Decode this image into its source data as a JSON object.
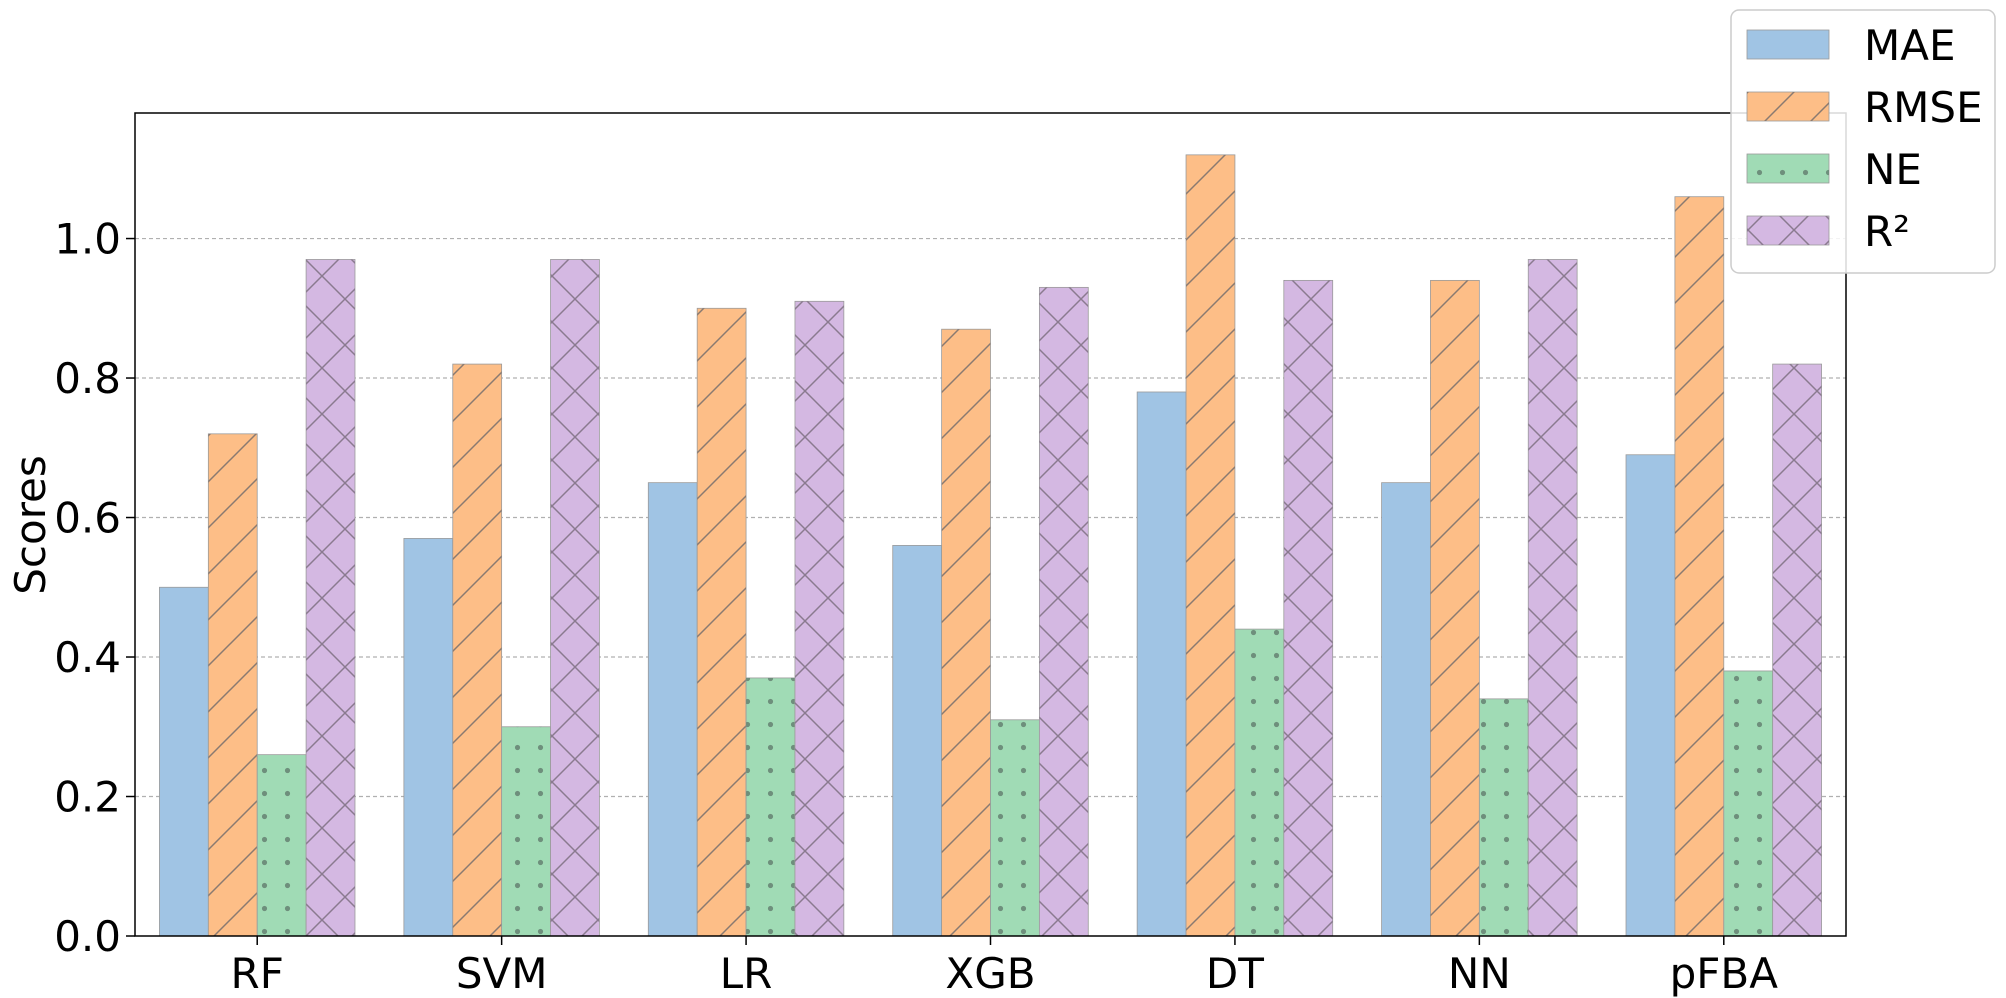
{
  "chart_data": {
    "type": "bar",
    "title": "",
    "xlabel": "",
    "ylabel": "Scores",
    "ylim": [
      0,
      1.18
    ],
    "yticks": [
      "0.0",
      "0.2",
      "0.4",
      "0.6",
      "0.8",
      "1.0"
    ],
    "grid": "y-dashed",
    "legend_position": "top-right",
    "categories": [
      "RF",
      "SVM",
      "LR",
      "XGB",
      "DT",
      "NN",
      "pFBA"
    ],
    "series": [
      {
        "name": "MAE",
        "color": "#a0c4e4",
        "pattern": "none",
        "values": [
          0.5,
          0.57,
          0.65,
          0.56,
          0.78,
          0.65,
          0.69
        ]
      },
      {
        "name": "RMSE",
        "color": "#fdbe87",
        "pattern": "diagonal",
        "values": [
          0.72,
          0.82,
          0.9,
          0.87,
          1.12,
          0.94,
          1.06
        ]
      },
      {
        "name": "NE",
        "color": "#a0dbb5",
        "pattern": "dots",
        "values": [
          0.26,
          0.3,
          0.37,
          0.31,
          0.44,
          0.34,
          0.38
        ]
      },
      {
        "name": "R²",
        "color": "#d4b8e2",
        "pattern": "crosshatch",
        "values": [
          0.97,
          0.97,
          0.91,
          0.93,
          0.94,
          0.97,
          0.82
        ]
      }
    ]
  }
}
